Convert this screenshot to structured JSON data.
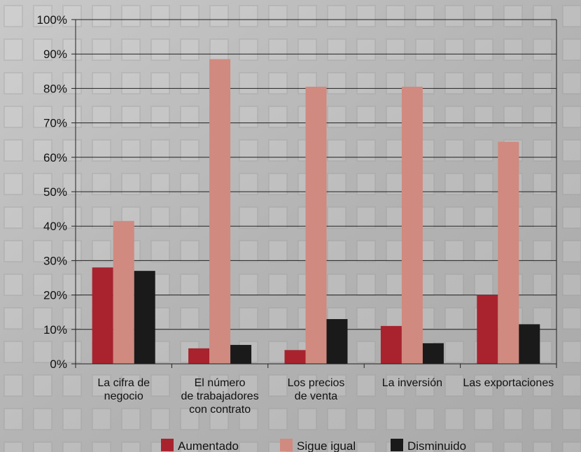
{
  "chart_data": {
    "type": "bar",
    "categories": [
      [
        "La cifra de",
        "negocio"
      ],
      [
        "El número",
        "de trabajadores",
        "con contrato"
      ],
      [
        "Los precios",
        "de venta"
      ],
      [
        "La inversión"
      ],
      [
        "Las exportaciones"
      ]
    ],
    "series": [
      {
        "name": "Aumentado",
        "values": [
          28,
          4.5,
          4,
          11,
          20
        ],
        "color": "#a8232e"
      },
      {
        "name": "Sigue igual",
        "values": [
          41.5,
          88.5,
          80.5,
          80.5,
          64.5
        ],
        "color": "#d08a7f"
      },
      {
        "name": "Disminuido",
        "values": [
          27,
          5.5,
          13,
          6,
          11.5
        ],
        "color": "#1a1a1a"
      }
    ],
    "ylim": [
      0,
      100
    ],
    "yticks": [
      0,
      10,
      20,
      30,
      40,
      50,
      60,
      70,
      80,
      90,
      100
    ],
    "ytick_labels": [
      "0%",
      "10%",
      "20%",
      "30%",
      "40%",
      "50%",
      "60%",
      "70%",
      "80%",
      "90%",
      "100%"
    ],
    "grid": true,
    "legend_position": "bottom",
    "title": "",
    "xlabel": "",
    "ylabel": ""
  }
}
